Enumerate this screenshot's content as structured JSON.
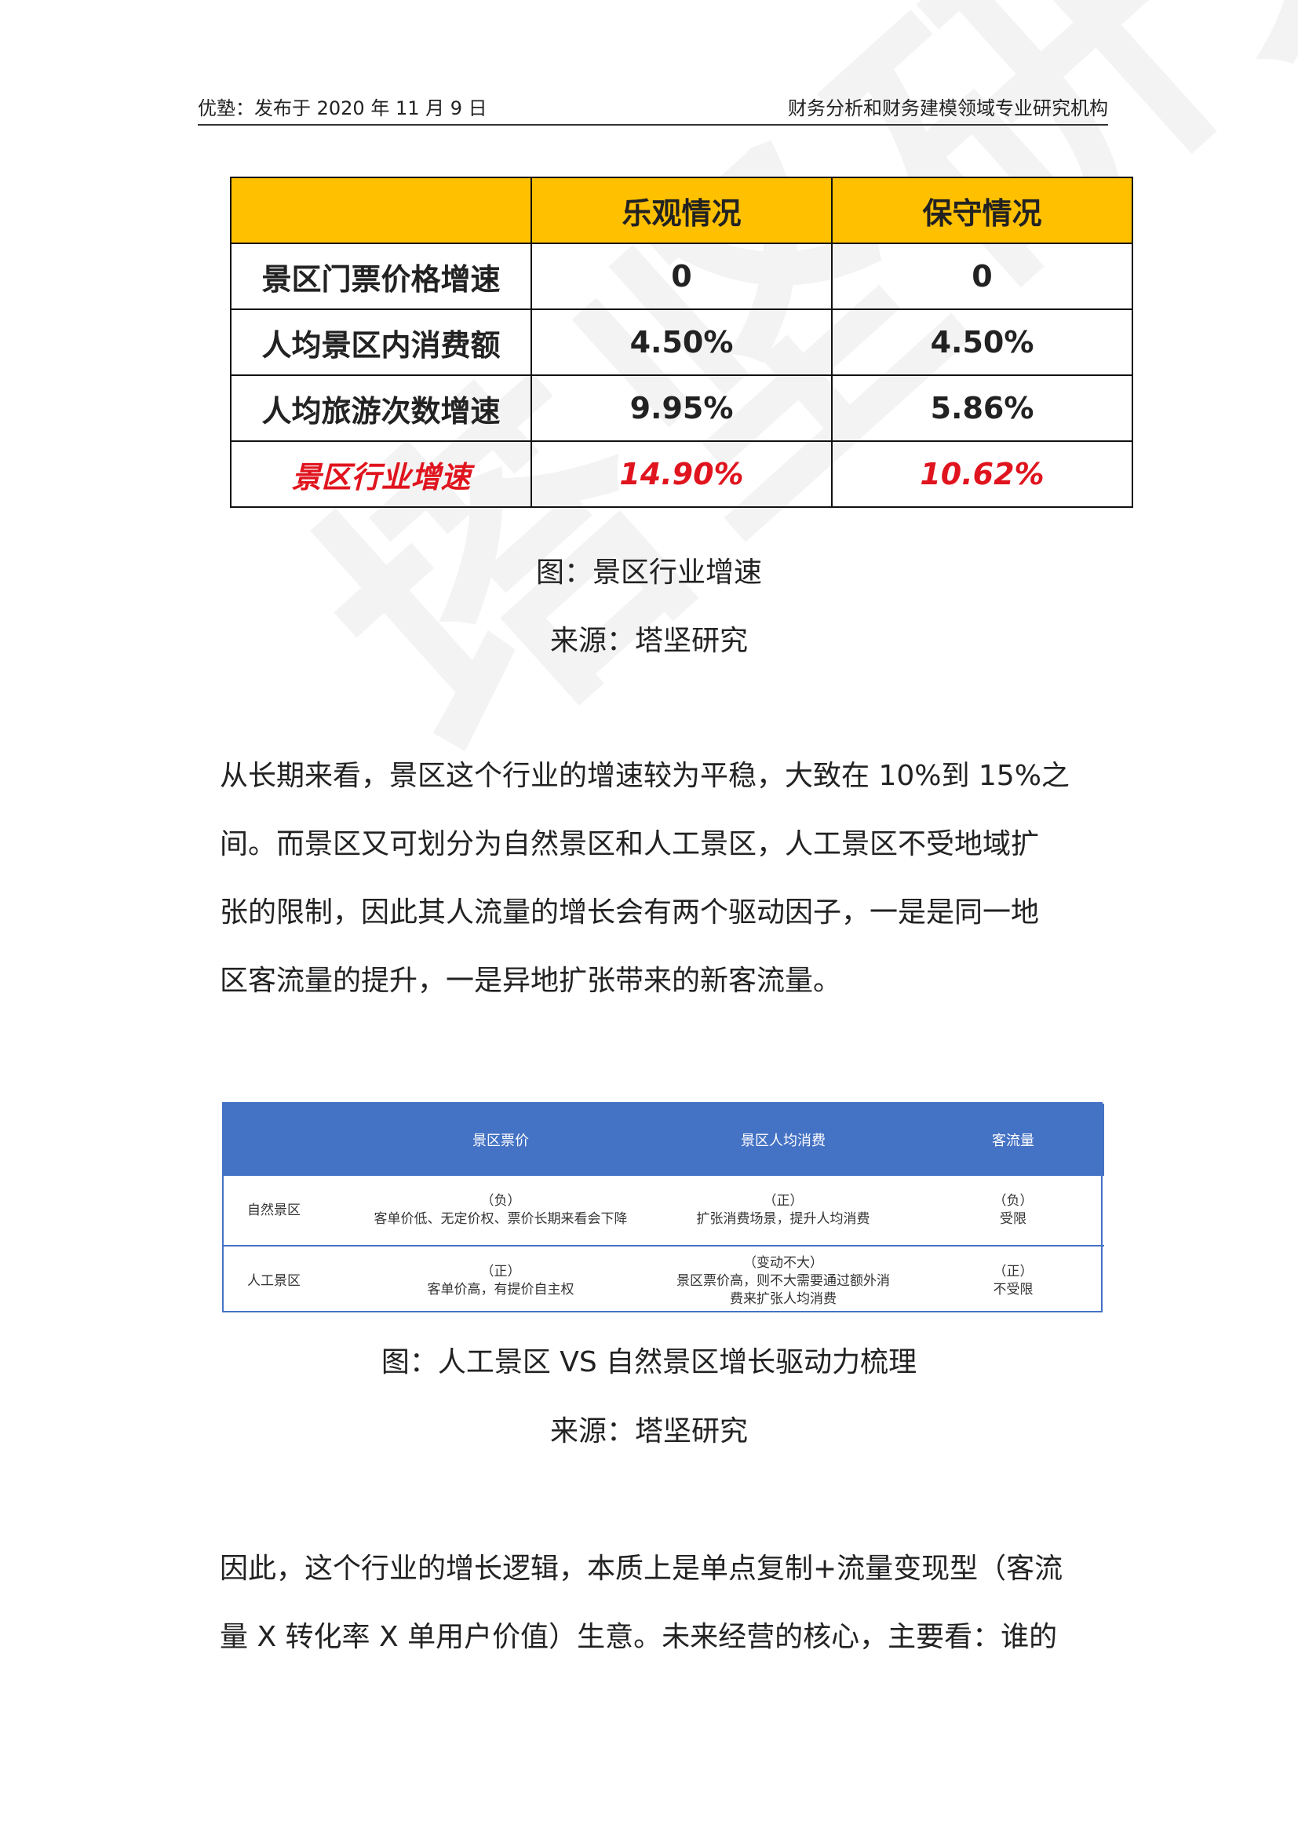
{
  "watermark": "塔坚研究",
  "header": {
    "left": "优塾：发布于 2020 年 11 月 9 日",
    "right": "财务分析和财务建模领域专业研究机构"
  },
  "table1": {
    "headers": [
      "",
      "乐观情况",
      "保守情况"
    ],
    "rows": [
      [
        "景区门票价格增速",
        "0",
        "0"
      ],
      [
        "人均景区内消费额",
        "4.50%",
        "4.50%"
      ],
      [
        "人均旅游次数增速",
        "9.95%",
        "5.86%"
      ],
      [
        "景区行业增速",
        "14.90%",
        "10.62%"
      ]
    ],
    "highlight_color": "#ffc000",
    "emphasis_color": "#e0141e"
  },
  "caption1": "图：景区行业增速",
  "source1": "来源：塔坚研究",
  "paragraph1": [
    "从长期来看，景区这个行业的增速较为平稳，大致在 10%到 15%之",
    "间。而景区又可划分为自然景区和人工景区，人工景区不受地域扩",
    "张的限制，因此其人流量的增长会有两个驱动因子，一是是同一地",
    "区客流量的提升，一是异地扩张带来的新客流量。"
  ],
  "table2": {
    "headers": [
      "",
      "景区票价",
      "景区人均消费",
      "客流量"
    ],
    "rows": [
      {
        "label": "自然景区",
        "cells": [
          [
            "（负）",
            "客单价低、无定价权、票价长期来看会下降"
          ],
          [
            "（正）",
            "扩张消费场景，提升人均消费"
          ],
          [
            "（负）",
            "受限"
          ]
        ]
      },
      {
        "label": "人工景区",
        "cells": [
          [
            "（正）",
            "客单价高，有提价自主权"
          ],
          [
            "（变动不大）",
            "景区票价高，则不大需要通过额外消",
            "费来扩张人均消费"
          ],
          [
            "（正）",
            "不受限"
          ]
        ]
      }
    ],
    "header_color": "#4472c4"
  },
  "caption2": "图：人工景区 VS 自然景区增长驱动力梳理",
  "source2": "来源：塔坚研究",
  "paragraph2": [
    "因此，这个行业的增长逻辑，本质上是单点复制+流量变现型（客流",
    "量 X 转化率 X 单用户价值）生意。未来经营的核心，主要看：谁的"
  ]
}
